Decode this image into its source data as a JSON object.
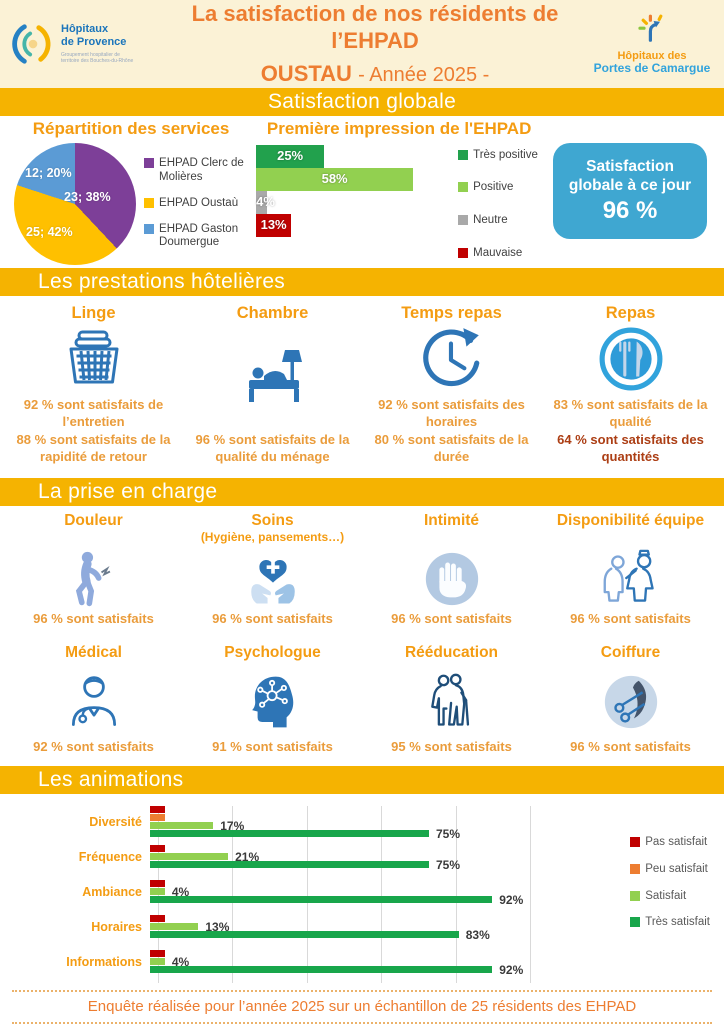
{
  "header": {
    "logo_left": {
      "line1": "Hôpitaux",
      "line2": "de Provence",
      "subtext": "Groupement hospitalier de territoire des Bouches-du-Rhône"
    },
    "title_line1": "La satisfaction de nos résidents de l’EHPAD",
    "title_line2_name": "OUSTAU",
    "title_line2_suffix": "- Année 2025 -",
    "logo_right": {
      "line1": "Hôpitaux des",
      "line2": "Portes de Camargue"
    }
  },
  "banners": {
    "global": "Satisfaction globale",
    "hotel": "Les prestations hôtelières",
    "care": "La prise en charge",
    "animations": "Les animations"
  },
  "global_box": {
    "line1": "Satisfaction",
    "line2": "globale à ce jour",
    "value": "96 %"
  },
  "chart_data": [
    {
      "type": "pie",
      "title": "Répartition des services",
      "slices": [
        {
          "name": "EHPAD Clerc de Molières",
          "value": 23,
          "pct": 38,
          "label": "23; 38%",
          "color": "#7D3F98"
        },
        {
          "name": "EHPAD Oustaù",
          "value": 25,
          "pct": 42,
          "label": "25; 42%",
          "color": "#FFC000"
        },
        {
          "name": "EHPAD Gaston Doumergue",
          "value": 12,
          "pct": 20,
          "label": "12; 20%",
          "color": "#5B9BD5"
        }
      ],
      "legend_position": "right"
    },
    {
      "type": "bar",
      "orientation": "horizontal",
      "title": "Première impression de l'EHPAD",
      "categories": [
        "Très positive",
        "Positive",
        "Neutre",
        "Mauvaise"
      ],
      "values": [
        25,
        58,
        4,
        13
      ],
      "labels": [
        "25%",
        "58%",
        "4%",
        "13%"
      ],
      "colors": [
        "#22A14D",
        "#92D050",
        "#A9A9A9",
        "#C00000"
      ],
      "xlim": [
        0,
        100
      ],
      "grid": false,
      "legend_position": "right"
    },
    {
      "type": "bar",
      "orientation": "horizontal",
      "grouped": true,
      "title": "Les animations",
      "categories": [
        "Diversité",
        "Fréquence",
        "Ambiance",
        "Horaires",
        "Informations"
      ],
      "series": [
        {
          "name": "Pas satisfait",
          "color": "#C00000",
          "values": [
            4,
            4,
            4,
            4,
            4
          ],
          "show_labels": false
        },
        {
          "name": "Peu satisfait",
          "color": "#ED7D31",
          "values": [
            4,
            0,
            0,
            0,
            0
          ],
          "show_labels": false
        },
        {
          "name": "Satisfait",
          "color": "#92D050",
          "values": [
            17,
            21,
            4,
            13,
            4
          ],
          "show_labels": true
        },
        {
          "name": "Très satisfait",
          "color": "#18A64B",
          "values": [
            75,
            75,
            92,
            83,
            92
          ],
          "show_labels": true
        }
      ],
      "xlim": [
        0,
        100
      ],
      "gridline_step": 20,
      "grid": true,
      "legend_position": "right"
    }
  ],
  "hotel_items": [
    {
      "title": "Linge",
      "icon": "laundry-basket-icon",
      "stats": [
        {
          "text": "92 % sont satisfaits de l’entretien"
        },
        {
          "text": "88 % sont satisfaits de la rapidité de retour"
        }
      ]
    },
    {
      "title": "Chambre",
      "icon": "bed-icon",
      "stats": [
        {
          "text": "96 % sont satisfaits de la qualité du ménage"
        }
      ]
    },
    {
      "title": "Temps repas",
      "icon": "clock-icon",
      "stats": [
        {
          "text": "92 % sont satisfaits des horaires"
        },
        {
          "text": "80 % sont satisfaits de la durée"
        }
      ]
    },
    {
      "title": "Repas",
      "icon": "meal-icon",
      "stats": [
        {
          "text": "83 % sont satisfaits de la qualité"
        },
        {
          "text": "64 % sont satisfaits des quantités",
          "highlight": true
        }
      ]
    }
  ],
  "care_rows": [
    [
      {
        "title": "Douleur",
        "icon": "pain-icon",
        "stat": "96 % sont satisfaits"
      },
      {
        "title": "Soins",
        "subtitle": "(Hygiène, pansements…)",
        "icon": "care-hands-icon",
        "stat": "96 % sont satisfaits"
      },
      {
        "title": "Intimité",
        "icon": "stop-hand-icon",
        "stat": "96 % sont satisfaits"
      },
      {
        "title": "Disponibilité équipe",
        "icon": "care-team-icon",
        "stat": "96 % sont satisfaits"
      }
    ],
    [
      {
        "title": "Médical",
        "icon": "doctor-icon",
        "stat": "92 % sont satisfaits"
      },
      {
        "title": "Psychologue",
        "icon": "psychologist-icon",
        "stat": "91 % sont satisfaits"
      },
      {
        "title": "Rééducation",
        "icon": "walking-aid-icon",
        "stat": "95 % sont satisfaits"
      },
      {
        "title": "Coiffure",
        "icon": "scissors-icon",
        "stat": "96 % sont satisfaits"
      }
    ]
  ],
  "footer": "Enquête réalisée pour l’année 2025 sur un échantillon de 25 résidents des EHPAD"
}
